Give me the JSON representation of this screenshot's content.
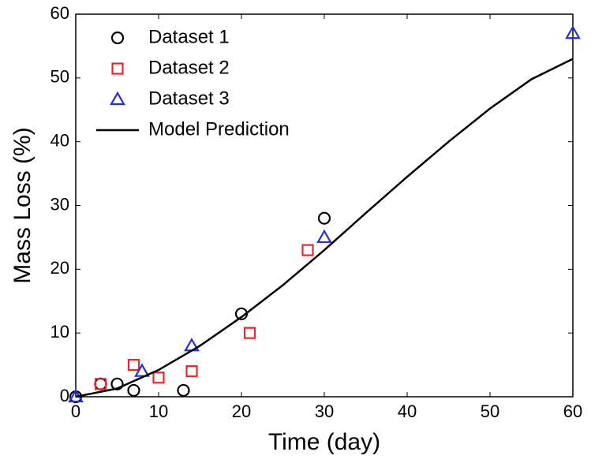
{
  "chart_data": {
    "type": "scatter",
    "xlabel": "Time (day)",
    "ylabel": "Mass Loss (%)",
    "xlim": [
      0,
      60
    ],
    "xticks": [
      0,
      10,
      20,
      30,
      40,
      50,
      60
    ],
    "ylim": [
      0,
      60
    ],
    "yticks": [
      0,
      10,
      20,
      30,
      40,
      50,
      60
    ],
    "legend": "upper left",
    "series": [
      {
        "name": "Dataset 1",
        "color": "#000000",
        "marker": "circle",
        "x": [
          0,
          3,
          5,
          7,
          13,
          20,
          30
        ],
        "values": [
          0,
          2,
          2,
          1,
          1,
          13,
          28
        ]
      },
      {
        "name": "Dataset 2",
        "color": "#e8262b",
        "marker": "square",
        "x": [
          3,
          7,
          10,
          14,
          21,
          28
        ],
        "values": [
          2,
          5,
          3,
          4,
          10,
          23
        ]
      },
      {
        "name": "Dataset 3",
        "color": "#2430d8",
        "marker": "triangle",
        "x": [
          0,
          8,
          14,
          30,
          60
        ],
        "values": [
          0,
          4,
          8,
          25,
          57
        ]
      },
      {
        "name": "Model Prediction",
        "color": "#000000",
        "marker": "line",
        "x": [
          0,
          5,
          10,
          15,
          20,
          25,
          30,
          35,
          40,
          45,
          50,
          55,
          60
        ],
        "values": [
          0,
          1.3,
          4.2,
          8,
          12.5,
          17.5,
          23,
          28.8,
          34.5,
          40,
          45.2,
          49.8,
          53
        ]
      }
    ]
  }
}
